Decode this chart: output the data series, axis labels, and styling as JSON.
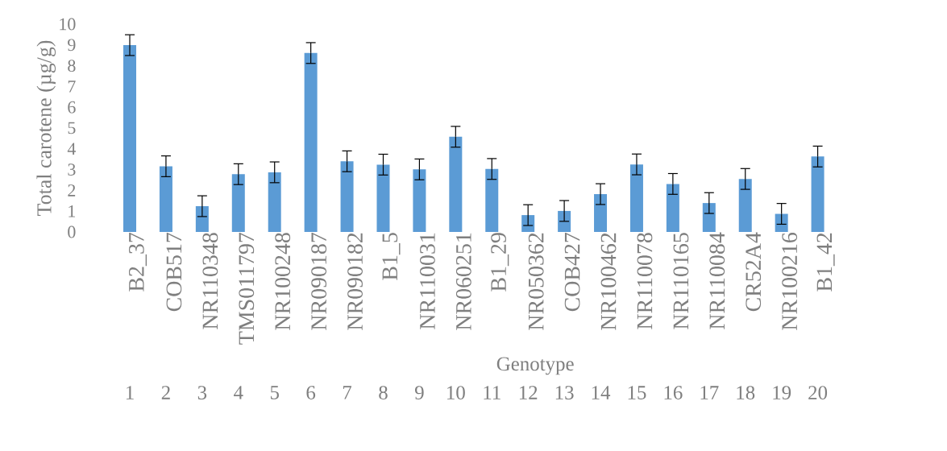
{
  "chart_data": {
    "type": "bar",
    "ylabel": "Total carotene (µg/g)",
    "xlabel": "Genotype",
    "categories": [
      "B2_37",
      "COB517",
      "NR110348",
      "TMS011797",
      "NR100248",
      "NR090187",
      "NR090182",
      "B1_5",
      "NR110031",
      "NR060251",
      "B1_29",
      "NR050362",
      "COB427",
      "NR100462",
      "NR110078",
      "NR110165",
      "NR110084",
      "CR52A4",
      "NR100216",
      "B1_42"
    ],
    "values": [
      8.99,
      3.16,
      1.24,
      2.78,
      2.87,
      8.61,
      3.4,
      3.24,
      3.01,
      4.58,
      3.03,
      0.81,
      1.01,
      1.82,
      3.25,
      2.31,
      1.39,
      2.55,
      0.87,
      3.63
    ],
    "errors": [
      0.5,
      0.5,
      0.5,
      0.5,
      0.5,
      0.5,
      0.5,
      0.5,
      0.5,
      0.5,
      0.5,
      0.5,
      0.5,
      0.5,
      0.5,
      0.5,
      0.5,
      0.5,
      0.5,
      0.5
    ],
    "color": "#5b9bd5",
    "ylim": [
      0,
      10
    ],
    "yticks": [
      0,
      1,
      2,
      3,
      4,
      5,
      6,
      7,
      8,
      9,
      10
    ],
    "grid": false,
    "annotations": [
      "1",
      "2",
      "3",
      "4",
      "5",
      "6",
      "7",
      "8",
      "9",
      "10",
      "11",
      "12",
      "13",
      "14",
      "15",
      "16",
      "17",
      "18",
      "19",
      "20"
    ]
  }
}
